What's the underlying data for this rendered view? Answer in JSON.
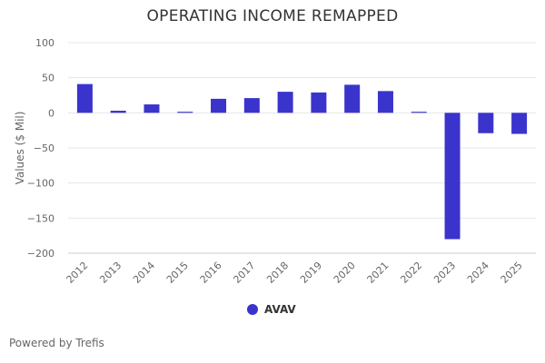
{
  "colors": {
    "series": "#3a34cc",
    "grid": "#e6e6e6",
    "axis_text": "#666666",
    "title_text": "#333333"
  },
  "footer": {
    "powered_by": "Powered by Trefis"
  },
  "chart_data": {
    "type": "bar",
    "title": "OPERATING INCOME REMAPPED",
    "xlabel": "",
    "ylabel": "Values ($ Mil)",
    "ylim": [
      -200,
      100
    ],
    "yticks": [
      100,
      50,
      0,
      -50,
      -100,
      -150,
      -200
    ],
    "ytick_labels": [
      "100",
      "50",
      "0",
      "−50",
      "−100",
      "−150",
      "−200"
    ],
    "grid": true,
    "legend_position": "bottom-center",
    "categories": [
      "2012",
      "2013",
      "2014",
      "2015",
      "2016",
      "2017",
      "2018",
      "2019",
      "2020",
      "2021",
      "2022",
      "2023",
      "2024",
      "2025"
    ],
    "series": [
      {
        "name": "AVAV",
        "values": [
          41,
          3,
          12,
          1.5,
          20,
          21,
          30,
          29,
          40,
          31,
          1.5,
          -180,
          -29,
          -30
        ]
      }
    ]
  }
}
